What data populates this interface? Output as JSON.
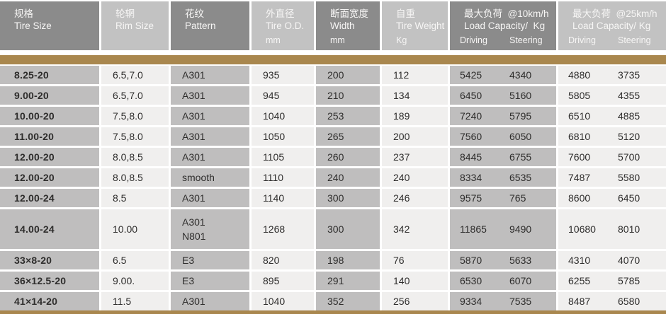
{
  "colors": {
    "header_dark_gray": "#8b8b8b",
    "header_light_gray": "#c2c2c2",
    "cell_gray": "#bfbebe",
    "cell_light": "#f0efee",
    "accent_bar_brown": "#a9874e",
    "header_text": "#f7f6f5",
    "body_text": "#2e2d2c"
  },
  "header": {
    "col1": {
      "zh": "规格",
      "en": "Tire Size"
    },
    "col2": {
      "zh": "轮辋",
      "en": "Rim Size"
    },
    "col3": {
      "zh": "花纹",
      "en": "Pattern"
    },
    "col4": {
      "zh": "外直径",
      "en": "Tire O.D.",
      "unit": "mm"
    },
    "col5": {
      "zh": "断面宽度",
      "en": "Width",
      "unit": "mm"
    },
    "col6": {
      "zh": "自重",
      "en": "Tire Weight",
      "unit": "Kg"
    },
    "col7": {
      "zh": "最大负荷  @10km/h",
      "en": "Load Capacity/  Kg",
      "driving": "Driving",
      "steering": "Steering"
    },
    "col8": {
      "zh": "最大负荷  @25km/h",
      "en": "Load Capacity/ Kg",
      "driving": "Driving",
      "steering": "Steering"
    }
  },
  "rows": [
    {
      "tire_size": "8.25-20",
      "rim_size": "6.5,7.0",
      "pattern": "A301",
      "tire_od": "935",
      "width": "200",
      "weight": "112",
      "load10_driving": "5425",
      "load10_steering": "4340",
      "load25_driving": "4880",
      "load25_steering": "3735"
    },
    {
      "tire_size": "9.00-20",
      "rim_size": "6.5,7.0",
      "pattern": "A301",
      "tire_od": "945",
      "width": "210",
      "weight": "134",
      "load10_driving": "6450",
      "load10_steering": "5160",
      "load25_driving": "5805",
      "load25_steering": "4355"
    },
    {
      "tire_size": "10.00-20",
      "rim_size": "7.5,8.0",
      "pattern": "A301",
      "tire_od": "1040",
      "width": "253",
      "weight": "189",
      "load10_driving": "7240",
      "load10_steering": "5795",
      "load25_driving": "6510",
      "load25_steering": "4885"
    },
    {
      "tire_size": "11.00-20",
      "rim_size": "7.5,8.0",
      "pattern": "A301",
      "tire_od": "1050",
      "width": "265",
      "weight": "200",
      "load10_driving": "7560",
      "load10_steering": "6050",
      "load25_driving": "6810",
      "load25_steering": "5120"
    },
    {
      "tire_size": "12.00-20",
      "rim_size": "8.0,8.5",
      "pattern": "A301",
      "tire_od": "1105",
      "width": "260",
      "weight": "237",
      "load10_driving": "8445",
      "load10_steering": "6755",
      "load25_driving": "7600",
      "load25_steering": "5700"
    },
    {
      "tire_size": "12.00-20",
      "rim_size": "8.0,8.5",
      "pattern": "smooth",
      "tire_od": "1110",
      "width": "240",
      "weight": "240",
      "load10_driving": "8334",
      "load10_steering": "6535",
      "load25_driving": "7487",
      "load25_steering": "5580"
    },
    {
      "tire_size": "12.00-24",
      "rim_size": "8.5",
      "pattern": "A301",
      "tire_od": "1140",
      "width": "300",
      "weight": "246",
      "load10_driving": "9575",
      "load10_steering": "765",
      "load25_driving": "8600",
      "load25_steering": "6450"
    },
    {
      "tire_size": "14.00-24",
      "rim_size": "10.00",
      "pattern": "A301",
      "pattern2": "N801",
      "tire_od": "1268",
      "width": "300",
      "weight": "342",
      "load10_driving": "11865",
      "load10_steering": "9490",
      "load25_driving": "10680",
      "load25_steering": "8010"
    },
    {
      "tire_size": "33×8-20",
      "rim_size": "6.5",
      "pattern": "E3",
      "tire_od": "820",
      "width": "198",
      "weight": "76",
      "load10_driving": "5870",
      "load10_steering": "5633",
      "load25_driving": "4310",
      "load25_steering": "4070"
    },
    {
      "tire_size": "36×12.5-20",
      "rim_size": "9.00.",
      "pattern": "E3",
      "tire_od": "895",
      "width": "291",
      "weight": "140",
      "load10_driving": "6530",
      "load10_steering": "6070",
      "load25_driving": "6255",
      "load25_steering": "5785"
    },
    {
      "tire_size": "41×14-20",
      "rim_size": "11.5",
      "pattern": "A301",
      "tire_od": "1040",
      "width": "352",
      "weight": "256",
      "load10_driving": "9334",
      "load10_steering": "7535",
      "load25_driving": "8487",
      "load25_steering": "6580"
    }
  ]
}
